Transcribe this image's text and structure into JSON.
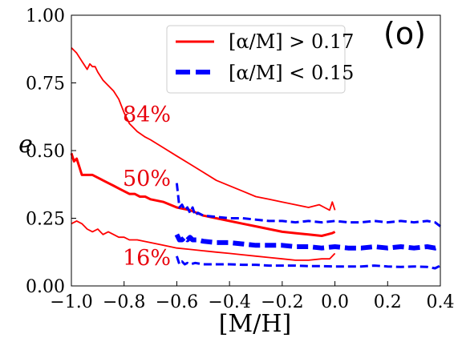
{
  "chart_data": {
    "type": "line",
    "xlabel": "[M/H]",
    "ylabel": "e",
    "xlim": [
      -1.0,
      0.4
    ],
    "ylim": [
      0.0,
      1.0
    ],
    "x_ticks": [
      "−1.0",
      "−0.8",
      "−0.6",
      "−0.4",
      "−0.2",
      "0.0",
      "0.2",
      "0.4"
    ],
    "y_ticks": [
      "0.00",
      "0.25",
      "0.50",
      "0.75",
      "1.00"
    ],
    "panel_label": "(o)",
    "legend_position": "top-center",
    "legend": [
      {
        "label": "[α/M] > 0.17",
        "color": "#ff0000",
        "style": "solid"
      },
      {
        "label": "[α/M] < 0.15",
        "color": "#0000ff",
        "style": "dashed"
      }
    ],
    "percentile_labels": {
      "p84": "84%",
      "p50": "50%",
      "p16": "16%"
    },
    "series": [
      {
        "group": "alpha_high",
        "percentile": "84%",
        "color": "#ff0000",
        "style": "solid",
        "x": [
          -1.0,
          -0.98,
          -0.96,
          -0.94,
          -0.93,
          -0.92,
          -0.91,
          -0.9,
          -0.88,
          -0.86,
          -0.84,
          -0.82,
          -0.8,
          -0.78,
          -0.75,
          -0.72,
          -0.7,
          -0.65,
          -0.6,
          -0.55,
          -0.5,
          -0.45,
          -0.4,
          -0.35,
          -0.3,
          -0.25,
          -0.2,
          -0.15,
          -0.1,
          -0.06,
          -0.04,
          -0.02,
          -0.01,
          0.0
        ],
        "y": [
          0.88,
          0.86,
          0.83,
          0.8,
          0.82,
          0.81,
          0.81,
          0.79,
          0.76,
          0.74,
          0.72,
          0.69,
          0.64,
          0.6,
          0.57,
          0.55,
          0.54,
          0.51,
          0.48,
          0.45,
          0.42,
          0.39,
          0.37,
          0.35,
          0.33,
          0.32,
          0.31,
          0.3,
          0.29,
          0.3,
          0.29,
          0.28,
          0.31,
          0.28
        ]
      },
      {
        "group": "alpha_high",
        "percentile": "50%",
        "color": "#ff0000",
        "style": "solid",
        "x": [
          -1.0,
          -0.99,
          -0.98,
          -0.97,
          -0.96,
          -0.95,
          -0.94,
          -0.92,
          -0.9,
          -0.88,
          -0.86,
          -0.84,
          -0.82,
          -0.8,
          -0.78,
          -0.76,
          -0.74,
          -0.72,
          -0.7,
          -0.65,
          -0.6,
          -0.55,
          -0.5,
          -0.45,
          -0.4,
          -0.35,
          -0.3,
          -0.25,
          -0.2,
          -0.15,
          -0.1,
          -0.05,
          -0.03,
          -0.01,
          0.0
        ],
        "y": [
          0.49,
          0.46,
          0.47,
          0.44,
          0.41,
          0.41,
          0.41,
          0.41,
          0.4,
          0.39,
          0.38,
          0.37,
          0.36,
          0.35,
          0.34,
          0.34,
          0.33,
          0.33,
          0.32,
          0.31,
          0.29,
          0.28,
          0.26,
          0.25,
          0.24,
          0.23,
          0.22,
          0.21,
          0.2,
          0.195,
          0.19,
          0.185,
          0.19,
          0.195,
          0.2
        ]
      },
      {
        "group": "alpha_high",
        "percentile": "16%",
        "color": "#ff0000",
        "style": "solid",
        "x": [
          -1.0,
          -0.98,
          -0.96,
          -0.94,
          -0.92,
          -0.9,
          -0.88,
          -0.86,
          -0.84,
          -0.82,
          -0.8,
          -0.78,
          -0.75,
          -0.7,
          -0.65,
          -0.6,
          -0.55,
          -0.5,
          -0.45,
          -0.4,
          -0.35,
          -0.3,
          -0.25,
          -0.2,
          -0.15,
          -0.1,
          -0.05,
          -0.02,
          0.0
        ],
        "y": [
          0.23,
          0.24,
          0.23,
          0.21,
          0.2,
          0.21,
          0.19,
          0.2,
          0.19,
          0.18,
          0.18,
          0.17,
          0.17,
          0.16,
          0.15,
          0.14,
          0.135,
          0.13,
          0.125,
          0.12,
          0.115,
          0.11,
          0.105,
          0.1,
          0.095,
          0.095,
          0.1,
          0.1,
          0.12
        ]
      },
      {
        "group": "alpha_low",
        "percentile": "84%",
        "color": "#0000ff",
        "style": "dashed",
        "x": [
          -0.6,
          -0.59,
          -0.58,
          -0.57,
          -0.56,
          -0.55,
          -0.54,
          -0.53,
          -0.52,
          -0.5,
          -0.45,
          -0.4,
          -0.35,
          -0.3,
          -0.25,
          -0.2,
          -0.15,
          -0.1,
          -0.05,
          0.0,
          0.05,
          0.1,
          0.15,
          0.2,
          0.25,
          0.3,
          0.35,
          0.38,
          0.4
        ],
        "y": [
          0.38,
          0.29,
          0.3,
          0.28,
          0.29,
          0.27,
          0.29,
          0.26,
          0.27,
          0.26,
          0.255,
          0.25,
          0.25,
          0.245,
          0.24,
          0.24,
          0.235,
          0.24,
          0.235,
          0.24,
          0.235,
          0.235,
          0.24,
          0.235,
          0.24,
          0.235,
          0.24,
          0.235,
          0.22
        ]
      },
      {
        "group": "alpha_low",
        "percentile": "50%",
        "color": "#0000ff",
        "style": "dashed",
        "x": [
          -0.6,
          -0.59,
          -0.58,
          -0.57,
          -0.56,
          -0.55,
          -0.54,
          -0.52,
          -0.5,
          -0.45,
          -0.4,
          -0.35,
          -0.3,
          -0.25,
          -0.2,
          -0.15,
          -0.1,
          -0.05,
          0.0,
          0.05,
          0.1,
          0.15,
          0.2,
          0.25,
          0.3,
          0.35,
          0.38,
          0.4
        ],
        "y": [
          0.19,
          0.17,
          0.17,
          0.18,
          0.17,
          0.18,
          0.17,
          0.17,
          0.165,
          0.16,
          0.16,
          0.155,
          0.15,
          0.15,
          0.15,
          0.145,
          0.145,
          0.14,
          0.145,
          0.14,
          0.14,
          0.145,
          0.14,
          0.145,
          0.14,
          0.145,
          0.14,
          0.145
        ]
      },
      {
        "group": "alpha_low",
        "percentile": "16%",
        "color": "#0000ff",
        "style": "dashed",
        "x": [
          -0.6,
          -0.59,
          -0.58,
          -0.57,
          -0.56,
          -0.55,
          -0.53,
          -0.5,
          -0.45,
          -0.4,
          -0.35,
          -0.3,
          -0.25,
          -0.2,
          -0.15,
          -0.1,
          -0.05,
          0.0,
          0.05,
          0.1,
          0.15,
          0.2,
          0.25,
          0.3,
          0.35,
          0.38,
          0.4
        ],
        "y": [
          0.11,
          0.08,
          0.09,
          0.08,
          0.085,
          0.08,
          0.085,
          0.08,
          0.08,
          0.08,
          0.078,
          0.078,
          0.075,
          0.075,
          0.075,
          0.073,
          0.073,
          0.072,
          0.072,
          0.072,
          0.075,
          0.072,
          0.07,
          0.072,
          0.07,
          0.065,
          0.075
        ]
      }
    ]
  }
}
